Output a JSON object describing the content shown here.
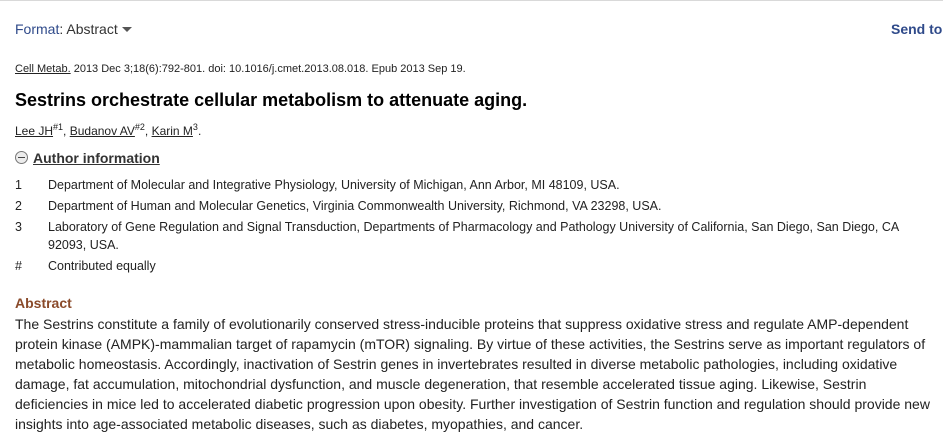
{
  "toolbar": {
    "format_label": "Format",
    "format_value": "Abstract",
    "send_to_label": "Send to"
  },
  "citation": {
    "journal": "Cell Metab.",
    "details": "2013 Dec 3;18(6):792-801. doi: 10.1016/j.cmet.2013.08.018. Epub 2013 Sep 19."
  },
  "article": {
    "title": "Sestrins orchestrate cellular metabolism to attenuate aging."
  },
  "authors": [
    {
      "name": "Lee JH",
      "sup": "#1"
    },
    {
      "name": "Budanov AV",
      "sup": "#2"
    },
    {
      "name": "Karin M",
      "sup": "3"
    }
  ],
  "author_info": {
    "label": "Author information",
    "affiliations": [
      {
        "num": "1",
        "text": "Department of Molecular and Integrative Physiology, University of Michigan, Ann Arbor, MI 48109, USA."
      },
      {
        "num": "2",
        "text": "Department of Human and Molecular Genetics, Virginia Commonwealth University, Richmond, VA 23298, USA."
      },
      {
        "num": "3",
        "text": "Laboratory of Gene Regulation and Signal Transduction, Departments of Pharmacology and Pathology University of California, San Diego, San Diego, CA 92093, USA."
      },
      {
        "num": "#",
        "text": "Contributed equally"
      }
    ]
  },
  "abstract": {
    "heading": "Abstract",
    "text": "The Sestrins constitute a family of evolutionarily conserved stress-inducible proteins that suppress oxidative stress and regulate AMP-dependent protein kinase (AMPK)-mammalian target of rapamycin (mTOR) signaling. By virtue of these activities, the Sestrins serve as important regulators of metabolic homeostasis. Accordingly, inactivation of Sestrin genes in invertebrates resulted in diverse metabolic pathologies, including oxidative damage, fat accumulation, mitochondrial dysfunction, and muscle degeneration, that resemble accelerated tissue aging. Likewise, Sestrin deficiencies in mice led to accelerated diabetic progression upon obesity. Further investigation of Sestrin function and regulation should provide new insights into age-associated metabolic diseases, such as diabetes, myopathies, and cancer."
  }
}
